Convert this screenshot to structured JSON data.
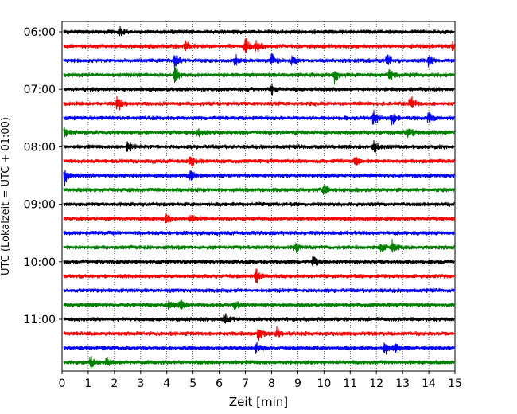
{
  "chart_data": {
    "type": "line",
    "title": "",
    "xlabel": "Zeit  [min]",
    "ylabel": "UTC (Lokalzeit = UTC + 01:00)",
    "xlim": [
      0,
      15
    ],
    "x_ticks": [
      0,
      1,
      2,
      3,
      4,
      5,
      6,
      7,
      8,
      9,
      10,
      11,
      12,
      13,
      14,
      15
    ],
    "x_tick_labels": [
      "0",
      "1",
      "2",
      "3",
      "4",
      "5",
      "6",
      "7",
      "8",
      "9",
      "10",
      "11",
      "12",
      "13",
      "14",
      "15"
    ],
    "y_ticks": [
      {
        "label": "06:00",
        "row": 0
      },
      {
        "label": "07:00",
        "row": 4
      },
      {
        "label": "08:00",
        "row": 8
      },
      {
        "label": "09:00",
        "row": 12
      },
      {
        "label": "10:00",
        "row": 16
      },
      {
        "label": "11:00",
        "row": 20
      }
    ],
    "grid": "vertical dotted at each minute",
    "colors": [
      "#000000",
      "#ff0000",
      "#0000ff",
      "#008000"
    ],
    "trace_count": 24,
    "events": [
      {
        "row": 0,
        "x": 2.2,
        "amp": 7
      },
      {
        "row": 1,
        "x": 4.7,
        "amp": 8
      },
      {
        "row": 1,
        "x": 7.0,
        "amp": 14
      },
      {
        "row": 1,
        "x": 7.4,
        "amp": 13
      },
      {
        "row": 1,
        "x": 14.9,
        "amp": 8
      },
      {
        "row": 2,
        "x": 4.3,
        "amp": 16
      },
      {
        "row": 2,
        "x": 6.6,
        "amp": 10
      },
      {
        "row": 2,
        "x": 8.0,
        "amp": 10
      },
      {
        "row": 2,
        "x": 8.8,
        "amp": 9
      },
      {
        "row": 2,
        "x": 12.4,
        "amp": 12
      },
      {
        "row": 2,
        "x": 14.0,
        "amp": 9
      },
      {
        "row": 3,
        "x": 4.3,
        "amp": 15
      },
      {
        "row": 3,
        "x": 10.4,
        "amp": 12
      },
      {
        "row": 3,
        "x": 12.5,
        "amp": 11
      },
      {
        "row": 4,
        "x": 8.0,
        "amp": 7
      },
      {
        "row": 5,
        "x": 2.1,
        "amp": 13
      },
      {
        "row": 5,
        "x": 13.3,
        "amp": 12
      },
      {
        "row": 6,
        "x": 11.9,
        "amp": 15
      },
      {
        "row": 6,
        "x": 12.6,
        "amp": 11
      },
      {
        "row": 6,
        "x": 14.0,
        "amp": 12
      },
      {
        "row": 7,
        "x": 0.1,
        "amp": 11
      },
      {
        "row": 7,
        "x": 5.2,
        "amp": 8
      },
      {
        "row": 7,
        "x": 13.2,
        "amp": 12
      },
      {
        "row": 8,
        "x": 2.5,
        "amp": 12
      },
      {
        "row": 8,
        "x": 11.9,
        "amp": 10
      },
      {
        "row": 9,
        "x": 4.9,
        "amp": 11
      },
      {
        "row": 9,
        "x": 11.2,
        "amp": 7
      },
      {
        "row": 10,
        "x": 0.1,
        "amp": 12
      },
      {
        "row": 10,
        "x": 4.9,
        "amp": 12
      },
      {
        "row": 11,
        "x": 10.0,
        "amp": 14
      },
      {
        "row": 13,
        "x": 4.0,
        "amp": 9
      },
      {
        "row": 13,
        "x": 4.9,
        "amp": 7
      },
      {
        "row": 15,
        "x": 8.9,
        "amp": 9
      },
      {
        "row": 15,
        "x": 12.2,
        "amp": 8
      },
      {
        "row": 15,
        "x": 12.6,
        "amp": 9
      },
      {
        "row": 16,
        "x": 9.6,
        "amp": 9
      },
      {
        "row": 17,
        "x": 7.4,
        "amp": 13
      },
      {
        "row": 19,
        "x": 4.1,
        "amp": 9
      },
      {
        "row": 19,
        "x": 4.5,
        "amp": 8
      },
      {
        "row": 19,
        "x": 6.6,
        "amp": 8
      },
      {
        "row": 20,
        "x": 6.2,
        "amp": 9
      },
      {
        "row": 21,
        "x": 7.5,
        "amp": 11
      },
      {
        "row": 21,
        "x": 8.2,
        "amp": 8
      },
      {
        "row": 22,
        "x": 7.4,
        "amp": 8
      },
      {
        "row": 22,
        "x": 12.3,
        "amp": 10
      },
      {
        "row": 22,
        "x": 12.7,
        "amp": 8
      },
      {
        "row": 23,
        "x": 1.1,
        "amp": 9
      },
      {
        "row": 23,
        "x": 1.7,
        "amp": 10
      }
    ]
  }
}
